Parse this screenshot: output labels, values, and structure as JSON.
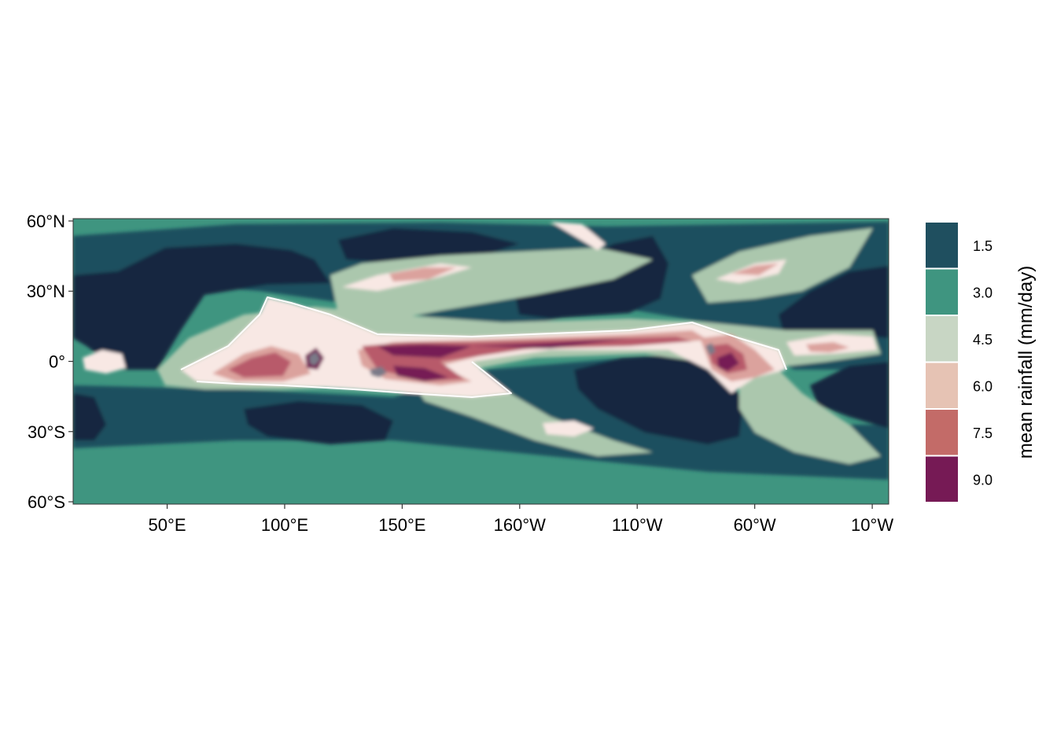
{
  "chart_data": {
    "type": "heatmap",
    "title": "",
    "xlabel": "",
    "ylabel": "",
    "x_ticks": [
      "50°E",
      "100°E",
      "150°E",
      "160°W",
      "110°W",
      "60°W",
      "10°W"
    ],
    "x_tick_values": [
      50,
      100,
      150,
      200,
      250,
      300,
      350
    ],
    "y_ticks": [
      "60°N",
      "30°N",
      "0°",
      "30°S",
      "60°S"
    ],
    "y_tick_values": [
      60,
      30,
      0,
      -30,
      -60
    ],
    "xlim": [
      10,
      357
    ],
    "ylim": [
      -61,
      61
    ],
    "legend": {
      "title": "mean rainfall (mm/day)",
      "placement": "right",
      "levels": [
        "1.5",
        "3.0",
        "4.5",
        "6.0",
        "7.5",
        "9.0"
      ],
      "colors": [
        "#1f4f5f",
        "#3f9580",
        "#c8d6c4",
        "#e6c3b4",
        "#c36b68",
        "#761a55"
      ]
    },
    "band_colors": [
      "#162740",
      "#1f4f5f",
      "#3f9580",
      "#abc7ad",
      "#f8e8e4",
      "#dba29d",
      "#b85a6a",
      "#761a55",
      "#7a7a88"
    ]
  }
}
